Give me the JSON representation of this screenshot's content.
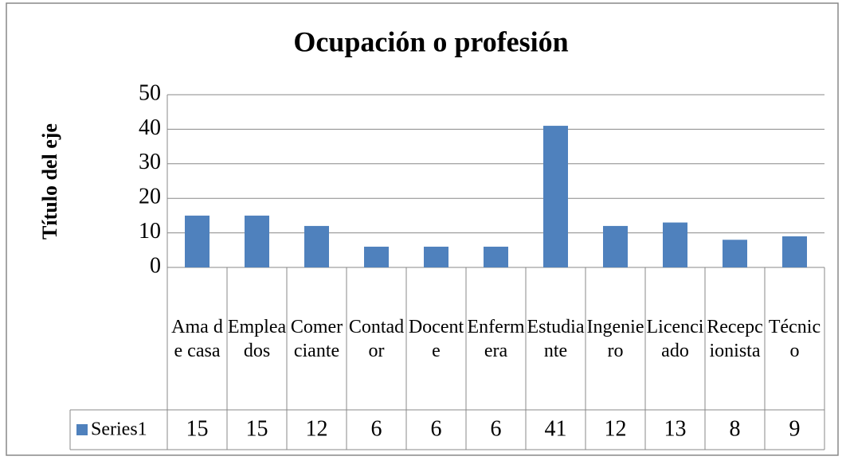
{
  "chart_data": {
    "type": "bar",
    "title": "Ocupación o profesión",
    "y_axis_label": "Título del eje",
    "categories": [
      "Ama de casa",
      "Empleados",
      "Comerciante",
      "Contador",
      "Docente",
      "Enfermera",
      "Estudiante",
      "Ingeniero",
      "Licenciado",
      "Recepcionista",
      "Técnico"
    ],
    "series": [
      {
        "name": "Series1",
        "color": "#4f81bd",
        "values": [
          15,
          15,
          12,
          6,
          6,
          6,
          41,
          12,
          13,
          8,
          9
        ]
      }
    ],
    "ylim": [
      0,
      50
    ],
    "yticks": [
      0,
      10,
      20,
      30,
      40,
      50
    ],
    "grid": true
  }
}
